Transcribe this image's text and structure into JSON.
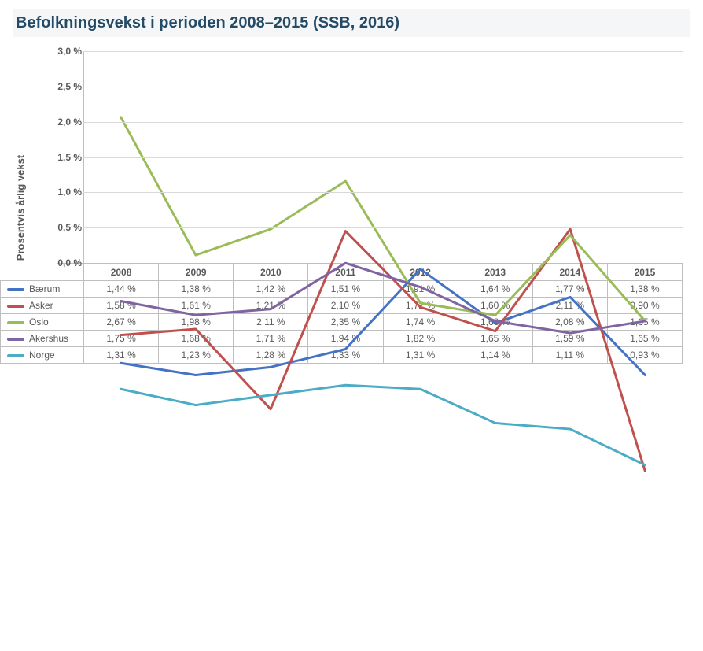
{
  "title": "Befolkningsvekst i perioden 2008–2015 (SSB, 2016)",
  "chart": {
    "type": "line",
    "ylabel": "Prosentvis årlig vekst",
    "years": [
      "2008",
      "2009",
      "2010",
      "2011",
      "2012",
      "2013",
      "2014",
      "2015"
    ],
    "ylim": [
      0.0,
      3.0
    ],
    "ytick_step": 0.5,
    "yticks": [
      "0,0 %",
      "0,5 %",
      "1,0 %",
      "1,5 %",
      "2,0 %",
      "2,5 %",
      "3,0 %"
    ],
    "background_color": "#ffffff",
    "grid_color": "#d9d9d9",
    "axis_color": "#bfbfbf",
    "title_color": "#244a66",
    "title_fontsize": 20,
    "label_fontsize": 13,
    "tick_fontsize": 12,
    "line_width": 3.0,
    "series": [
      {
        "name": "Bærum",
        "color": "#4472c4",
        "values": [
          1.44,
          1.38,
          1.42,
          1.51,
          1.91,
          1.64,
          1.77,
          1.38
        ],
        "labels": [
          "1,44 %",
          "1,38 %",
          "1,42 %",
          "1,51 %",
          "1,91 %",
          "1,64 %",
          "1,77 %",
          "1,38 %"
        ]
      },
      {
        "name": "Asker",
        "color": "#c0504d",
        "values": [
          1.58,
          1.61,
          1.21,
          2.1,
          1.72,
          1.6,
          2.11,
          0.9
        ],
        "labels": [
          "1,58 %",
          "1,61 %",
          "1,21 %",
          "2,10 %",
          "1,72 %",
          "1,60 %",
          "2,11 %",
          "0,90 %"
        ]
      },
      {
        "name": "Oslo",
        "color": "#9bbb59",
        "values": [
          2.67,
          1.98,
          2.11,
          2.35,
          1.74,
          1.68,
          2.08,
          1.65
        ],
        "labels": [
          "2,67 %",
          "1,98 %",
          "2,11 %",
          "2,35 %",
          "1,74 %",
          "1,68 %",
          "2,08 %",
          "1,65 %"
        ]
      },
      {
        "name": "Akershus",
        "color": "#8064a2",
        "values": [
          1.75,
          1.68,
          1.71,
          1.94,
          1.82,
          1.65,
          1.59,
          1.65
        ],
        "labels": [
          "1,75 %",
          "1,68 %",
          "1,71 %",
          "1,94 %",
          "1,82 %",
          "1,65 %",
          "1,59 %",
          "1,65 %"
        ]
      },
      {
        "name": "Norge",
        "color": "#4bacc6",
        "values": [
          1.31,
          1.23,
          1.28,
          1.33,
          1.31,
          1.14,
          1.11,
          0.93
        ],
        "labels": [
          "1,31 %",
          "1,23 %",
          "1,28 %",
          "1,33 %",
          "1,31 %",
          "1,14 %",
          "1,11 %",
          "0,93 %"
        ]
      }
    ]
  }
}
